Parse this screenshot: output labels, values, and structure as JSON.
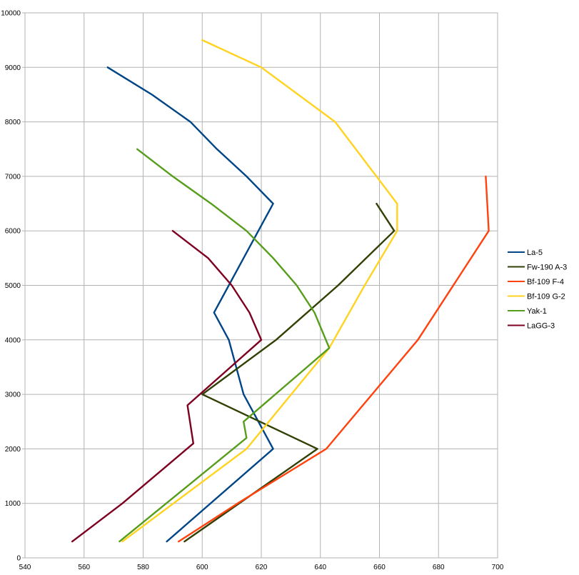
{
  "chart_data": {
    "type": "line",
    "title": "",
    "xlabel": "",
    "ylabel": "",
    "xlim": [
      540,
      700
    ],
    "ylim": [
      0,
      10000
    ],
    "x_ticks": [
      540,
      560,
      580,
      600,
      620,
      640,
      660,
      680,
      700
    ],
    "y_ticks": [
      0,
      1000,
      2000,
      3000,
      4000,
      5000,
      6000,
      7000,
      8000,
      9000,
      10000
    ],
    "grid": true,
    "legend_position": "right",
    "series": [
      {
        "name": "La-5",
        "color": "#004586",
        "points": [
          [
            588,
            300
          ],
          [
            624,
            2000
          ],
          [
            614,
            3000
          ],
          [
            609,
            4000
          ],
          [
            604,
            4500
          ],
          [
            609,
            5000
          ],
          [
            614,
            5500
          ],
          [
            619,
            6000
          ],
          [
            624,
            6500
          ],
          [
            615,
            7000
          ],
          [
            605,
            7500
          ],
          [
            596,
            8000
          ],
          [
            583,
            8500
          ],
          [
            568,
            9000
          ]
        ]
      },
      {
        "name": "Fw-190 A-3",
        "color": "#314004",
        "points": [
          [
            594,
            300
          ],
          [
            639,
            2000
          ],
          [
            600,
            3000
          ],
          [
            625,
            4000
          ],
          [
            646,
            5000
          ],
          [
            665,
            6000
          ],
          [
            659,
            6500
          ]
        ]
      },
      {
        "name": "Bf-109 F-4",
        "color": "#ff420e",
        "points": [
          [
            592,
            300
          ],
          [
            612,
            1000
          ],
          [
            642,
            2000
          ],
          [
            673,
            4000
          ],
          [
            697,
            6000
          ],
          [
            696,
            7000
          ]
        ]
      },
      {
        "name": "Bf-109 G-2",
        "color": "#ffd320",
        "points": [
          [
            573,
            300
          ],
          [
            615,
            2000
          ],
          [
            643,
            3850
          ],
          [
            655,
            5000
          ],
          [
            666,
            6000
          ],
          [
            666,
            6500
          ],
          [
            645,
            8000
          ],
          [
            620,
            9000
          ],
          [
            600,
            9500
          ]
        ]
      },
      {
        "name": "Yak-1",
        "color": "#579d1c",
        "points": [
          [
            572,
            300
          ],
          [
            615,
            2200
          ],
          [
            614,
            2500
          ],
          [
            643,
            3850
          ],
          [
            638,
            4500
          ],
          [
            632,
            5000
          ],
          [
            624,
            5500
          ],
          [
            615,
            6000
          ],
          [
            603,
            6500
          ],
          [
            590,
            7000
          ],
          [
            578,
            7500
          ]
        ]
      },
      {
        "name": "LaGG-3",
        "color": "#7e0021",
        "points": [
          [
            556,
            300
          ],
          [
            573,
            1000
          ],
          [
            597,
            2100
          ],
          [
            595,
            2800
          ],
          [
            620,
            4000
          ],
          [
            616,
            4500
          ],
          [
            610,
            5000
          ],
          [
            602,
            5500
          ],
          [
            590,
            6000
          ]
        ]
      }
    ]
  }
}
